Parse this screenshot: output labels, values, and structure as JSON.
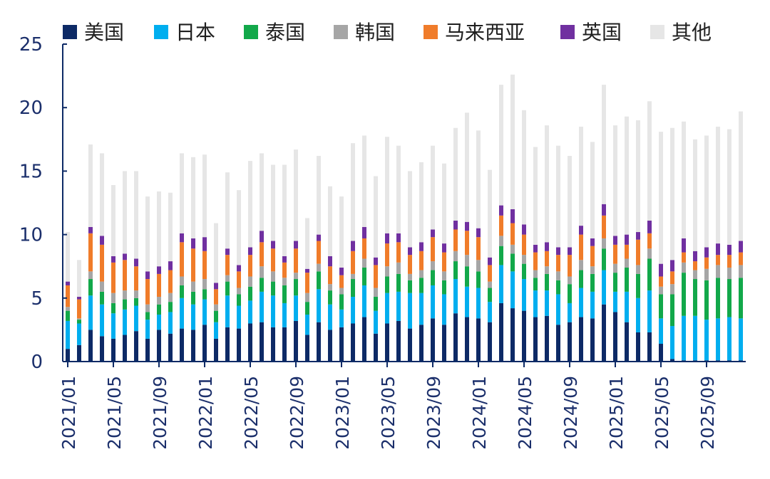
{
  "chart_data": {
    "type": "bar",
    "stacked": true,
    "title": "",
    "xlabel": "",
    "ylabel": "",
    "ylim": [
      0,
      25
    ],
    "yticks": [
      0,
      5,
      10,
      15,
      20,
      25
    ],
    "grid": false,
    "legend_position": "top",
    "categories": [
      "2021/01",
      "2021/02",
      "2021/03",
      "2021/04",
      "2021/05",
      "2021/06",
      "2021/07",
      "2021/08",
      "2021/09",
      "2021/10",
      "2021/11",
      "2021/12",
      "2022/01",
      "2022/02",
      "2022/03",
      "2022/04",
      "2022/05",
      "2022/06",
      "2022/07",
      "2022/08",
      "2022/09",
      "2022/10",
      "2022/11",
      "2022/12",
      "2023/01",
      "2023/02",
      "2023/03",
      "2023/04",
      "2023/05",
      "2023/06",
      "2023/07",
      "2023/08",
      "2023/09",
      "2023/10",
      "2023/11",
      "2023/12",
      "2024/01",
      "2024/02",
      "2024/03",
      "2024/04",
      "2024/05",
      "2024/06",
      "2024/07",
      "2024/08",
      "2024/09",
      "2024/10",
      "2024/11",
      "2024/12",
      "2025/01",
      "2025/02",
      "2025/03",
      "2025/04",
      "2025/05",
      "2025/06",
      "2025/07",
      "2025/08",
      "2025/09",
      "2025/10",
      "2025/11",
      "2025/12"
    ],
    "x_tick_labels": [
      "2021/01",
      "2021/05",
      "2021/09",
      "2022/01",
      "2022/05",
      "2022/09",
      "2023/01",
      "2023/05",
      "2023/09",
      "2024/01",
      "2024/05",
      "2024/09",
      "2025/01",
      "2025/05",
      "2025/09"
    ],
    "x_tick_every": 4,
    "series": [
      {
        "name": "美国",
        "color": "#0d2a66",
        "values": [
          1.0,
          1.3,
          2.5,
          2.0,
          1.8,
          2.1,
          2.4,
          1.8,
          2.5,
          2.2,
          2.6,
          2.5,
          2.9,
          1.8,
          2.7,
          2.6,
          3.0,
          3.1,
          2.7,
          2.7,
          3.2,
          2.1,
          3.1,
          2.5,
          2.7,
          3.0,
          3.5,
          2.2,
          3.0,
          3.2,
          2.6,
          2.9,
          3.4,
          2.9,
          3.8,
          3.5,
          3.4,
          3.1,
          4.6,
          4.2,
          4.0,
          3.5,
          3.6,
          2.9,
          3.1,
          3.5,
          3.4,
          4.5,
          3.9,
          3.1,
          2.3,
          2.3,
          1.4,
          0.2,
          0.1,
          0.1,
          0.1,
          0.1,
          0.1,
          0.1
        ]
      },
      {
        "name": "日本",
        "color": "#00aeef",
        "values": [
          2.2,
          1.7,
          2.7,
          2.5,
          2.0,
          2.0,
          2.0,
          1.5,
          1.2,
          1.7,
          2.4,
          2.0,
          2.0,
          1.3,
          2.5,
          1.8,
          1.8,
          2.4,
          2.5,
          1.9,
          2.0,
          1.6,
          2.6,
          2.0,
          1.4,
          2.1,
          2.5,
          1.8,
          2.4,
          2.3,
          2.8,
          2.5,
          2.6,
          2.4,
          2.7,
          2.4,
          2.4,
          1.6,
          3.0,
          2.9,
          2.5,
          2.1,
          2.0,
          2.4,
          1.5,
          2.3,
          2.1,
          2.7,
          1.6,
          2.4,
          2.7,
          3.3,
          2.0,
          2.6,
          3.5,
          3.5,
          3.2,
          3.3,
          3.4,
          3.3
        ]
      },
      {
        "name": "泰国",
        "color": "#12a84a",
        "values": [
          0.8,
          0.3,
          1.3,
          1.0,
          0.8,
          0.8,
          0.6,
          0.6,
          0.8,
          0.8,
          1.0,
          1.0,
          0.8,
          0.9,
          1.1,
          0.9,
          1.1,
          1.1,
          1.1,
          1.4,
          1.3,
          1.0,
          1.4,
          1.1,
          1.2,
          1.4,
          1.4,
          1.1,
          1.3,
          1.4,
          1.0,
          1.2,
          1.2,
          1.1,
          1.4,
          1.6,
          1.3,
          1.1,
          1.5,
          1.4,
          1.2,
          1.0,
          1.3,
          1.1,
          1.5,
          1.4,
          1.4,
          1.7,
          1.5,
          1.9,
          1.9,
          2.5,
          1.9,
          2.5,
          3.4,
          2.9,
          3.1,
          3.2,
          3.0,
          3.2
        ]
      },
      {
        "name": "韩国",
        "color": "#a6a6a6",
        "values": [
          0.3,
          0.1,
          0.6,
          0.8,
          0.8,
          0.7,
          0.6,
          0.6,
          0.6,
          0.7,
          0.7,
          0.8,
          0.8,
          0.5,
          0.5,
          0.5,
          0.8,
          0.9,
          0.8,
          0.6,
          0.5,
          0.7,
          0.6,
          0.5,
          0.5,
          0.4,
          0.7,
          0.7,
          0.8,
          0.9,
          0.5,
          0.6,
          0.7,
          0.7,
          0.8,
          0.9,
          0.9,
          0.5,
          0.8,
          0.7,
          0.7,
          0.6,
          0.6,
          0.7,
          0.6,
          0.8,
          0.6,
          0.8,
          0.7,
          0.7,
          0.7,
          0.8,
          0.6,
          0.8,
          0.8,
          0.7,
          0.9,
          1.0,
          0.9,
          1.0
        ]
      },
      {
        "name": "马来西亚",
        "color": "#f07c2a",
        "values": [
          1.7,
          1.5,
          3.0,
          2.9,
          2.4,
          2.4,
          1.9,
          2.0,
          1.8,
          1.8,
          2.7,
          2.6,
          2.2,
          1.2,
          1.6,
          1.3,
          1.7,
          1.9,
          1.8,
          1.2,
          1.9,
          1.6,
          1.8,
          1.4,
          1.0,
          1.8,
          1.6,
          1.8,
          1.8,
          1.6,
          1.5,
          1.5,
          1.9,
          1.5,
          1.7,
          1.9,
          1.8,
          1.3,
          1.6,
          1.7,
          1.6,
          1.4,
          1.2,
          1.3,
          1.7,
          2.0,
          1.6,
          1.8,
          1.5,
          1.1,
          2.0,
          1.2,
          0.8,
          1.0,
          0.8,
          0.7,
          0.9,
          0.8,
          1.0,
          1.0
        ]
      },
      {
        "name": "英国",
        "color": "#7030a0",
        "values": [
          0.3,
          0.2,
          0.5,
          0.7,
          0.5,
          0.5,
          0.6,
          0.6,
          0.6,
          0.7,
          0.7,
          0.8,
          1.1,
          0.5,
          0.5,
          0.5,
          0.6,
          0.9,
          0.6,
          0.5,
          0.6,
          0.3,
          0.5,
          0.8,
          0.6,
          0.8,
          0.9,
          0.6,
          0.8,
          0.7,
          0.6,
          0.7,
          0.6,
          0.7,
          0.7,
          0.7,
          0.7,
          0.6,
          0.8,
          1.1,
          0.8,
          0.6,
          0.7,
          0.6,
          0.6,
          0.7,
          0.6,
          0.9,
          0.7,
          0.8,
          0.6,
          1.0,
          1.0,
          0.9,
          1.1,
          0.8,
          0.8,
          0.9,
          0.8,
          0.9
        ]
      },
      {
        "name": "其他",
        "color": "#e6e6e6",
        "values": [
          3.9,
          2.9,
          6.5,
          6.5,
          5.6,
          6.5,
          6.9,
          5.9,
          5.9,
          5.4,
          6.3,
          6.4,
          6.5,
          4.7,
          6.0,
          5.9,
          6.8,
          6.1,
          6.0,
          7.2,
          7.2,
          4.0,
          6.2,
          5.5,
          5.6,
          7.7,
          7.2,
          6.4,
          7.6,
          6.9,
          6.0,
          6.3,
          6.6,
          6.3,
          7.3,
          8.6,
          7.7,
          6.9,
          9.5,
          10.6,
          9.0,
          7.7,
          9.2,
          8.0,
          7.2,
          7.8,
          7.6,
          9.4,
          8.7,
          9.3,
          8.8,
          9.4,
          10.4,
          10.4,
          9.2,
          8.8,
          8.8,
          9.2,
          9.1,
          10.2
        ]
      }
    ]
  }
}
